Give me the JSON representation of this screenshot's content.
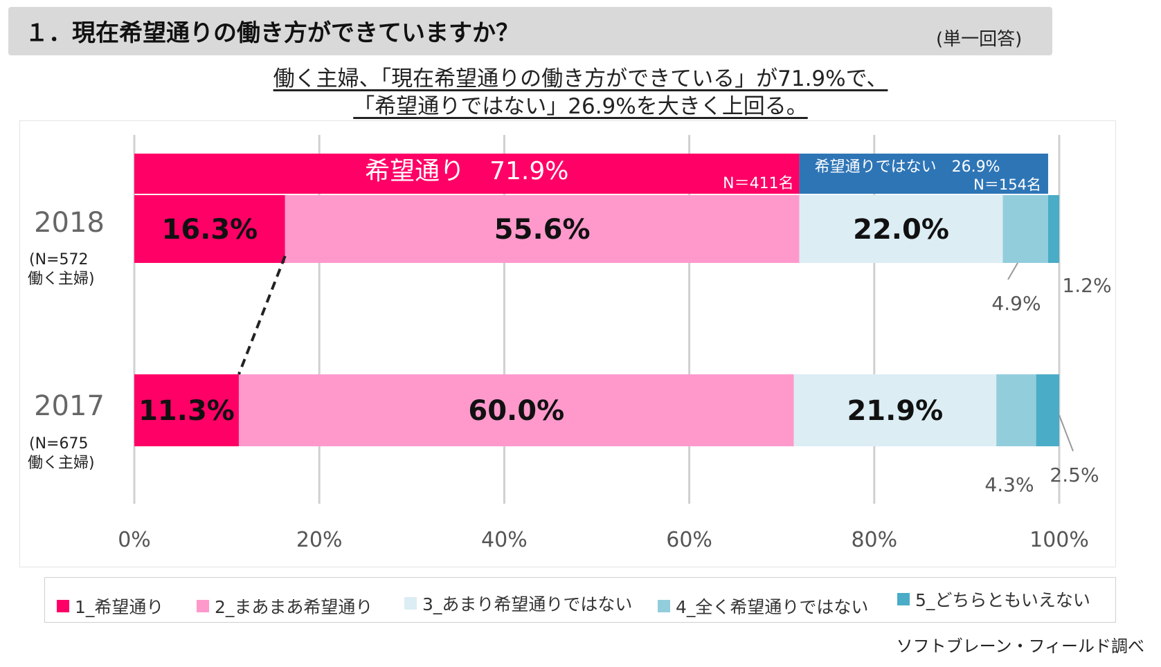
{
  "header": {
    "title": "１．現在希望通りの働き方ができていますか？",
    "answer_type": "(単一回答)"
  },
  "headline": {
    "line1": "働く主婦、「現在希望通りの働き方ができている」が71.9%で、",
    "line2": "「希望通りではない」26.9%を大きく上回る。"
  },
  "source": "ソフトブレーン・フィールド調べ",
  "colors": {
    "kibou": "#ff0066",
    "maamaa": "#ff99cc",
    "amari": "#dcedf4",
    "mattaku": "#92cddc",
    "dochira": "#4aacc6",
    "not_banner": "#2e75b6"
  },
  "chart_data": {
    "type": "bar",
    "orientation": "horizontal",
    "stacked": true,
    "percent": true,
    "xlim": [
      0,
      100
    ],
    "x_ticks": [
      "0%",
      "20%",
      "40%",
      "60%",
      "80%",
      "100%"
    ],
    "grid": true,
    "legend_position": "bottom",
    "series": [
      {
        "name": "1_希望通り",
        "color_key": "kibou"
      },
      {
        "name": "2_まあまあ希望通り",
        "color_key": "maamaa"
      },
      {
        "name": "3_あまり希望通りではない",
        "color_key": "amari"
      },
      {
        "name": "4_全く希望通りではない",
        "color_key": "mattaku"
      },
      {
        "name": "5_どちらともいえない",
        "color_key": "dochira"
      }
    ],
    "bars": [
      {
        "year": "2018",
        "n_label": "(N=572",
        "group_label": "働く主婦)",
        "values": [
          16.3,
          55.6,
          22.0,
          4.9,
          1.2
        ],
        "labels": [
          "16.3%",
          "55.6%",
          "22.0%",
          "4.9%",
          "1.2%"
        ]
      },
      {
        "year": "2017",
        "n_label": "(N=675",
        "group_label": "働く主婦)",
        "values": [
          11.3,
          60.0,
          21.9,
          4.3,
          2.5
        ],
        "labels": [
          "11.3%",
          "60.0%",
          "21.9%",
          "4.3%",
          "2.5%"
        ]
      }
    ],
    "summary_2018": {
      "kibou_label": "希望通り　71.9%",
      "kibou_value": 71.9,
      "kibou_n": "N＝411名",
      "not_label": "希望通りではない　26.9%",
      "not_value": 26.9,
      "not_n": "N＝154名"
    }
  }
}
